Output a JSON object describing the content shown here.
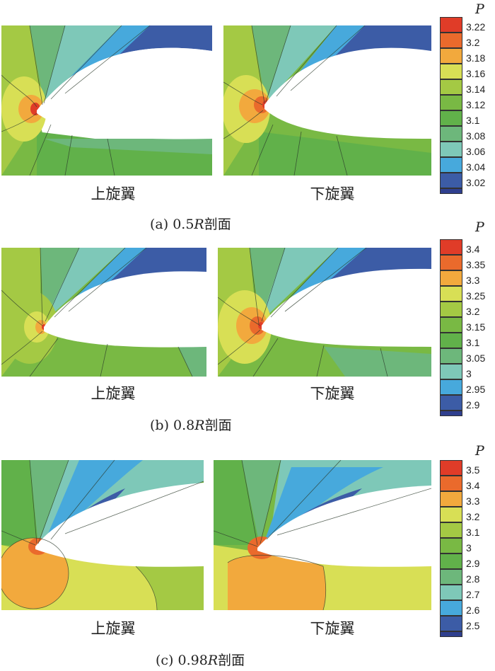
{
  "panels": [
    {
      "id": "a",
      "caption_prefix": "(a) 0.5",
      "caption_var": "R",
      "caption_suffix": "剖面",
      "left_label": "上旋翼",
      "right_label": "下旋翼",
      "colorbar_title": "P",
      "levels": [
        "3.22",
        "3.2",
        "3.18",
        "3.16",
        "3.14",
        "3.12",
        "3.1",
        "3.08",
        "3.06",
        "3.04",
        "3.02"
      ]
    },
    {
      "id": "b",
      "caption_prefix": "(b) 0.8",
      "caption_var": "R",
      "caption_suffix": "剖面",
      "left_label": "上旋翼",
      "right_label": "下旋翼",
      "colorbar_title": "P",
      "levels": [
        "3.4",
        "3.35",
        "3.3",
        "3.25",
        "3.2",
        "3.15",
        "3.1",
        "3.05",
        "3",
        "2.95",
        "2.9"
      ]
    },
    {
      "id": "c",
      "caption_prefix": "(c) 0.98",
      "caption_var": "R",
      "caption_suffix": "剖面",
      "left_label": "上旋翼",
      "right_label": "下旋翼",
      "colorbar_title": "P",
      "levels": [
        "3.5",
        "3.4",
        "3.3",
        "3.2",
        "3.1",
        "3",
        "2.9",
        "2.8",
        "2.7",
        "2.6",
        "2.5"
      ]
    }
  ],
  "colormap": [
    "#e03c28",
    "#ea6a2c",
    "#f2a93d",
    "#d8df55",
    "#a4c944",
    "#79b944",
    "#61b14a",
    "#6db77b",
    "#7ec8b8",
    "#47a9dc",
    "#3c5ca6",
    "#2f3f8e"
  ]
}
